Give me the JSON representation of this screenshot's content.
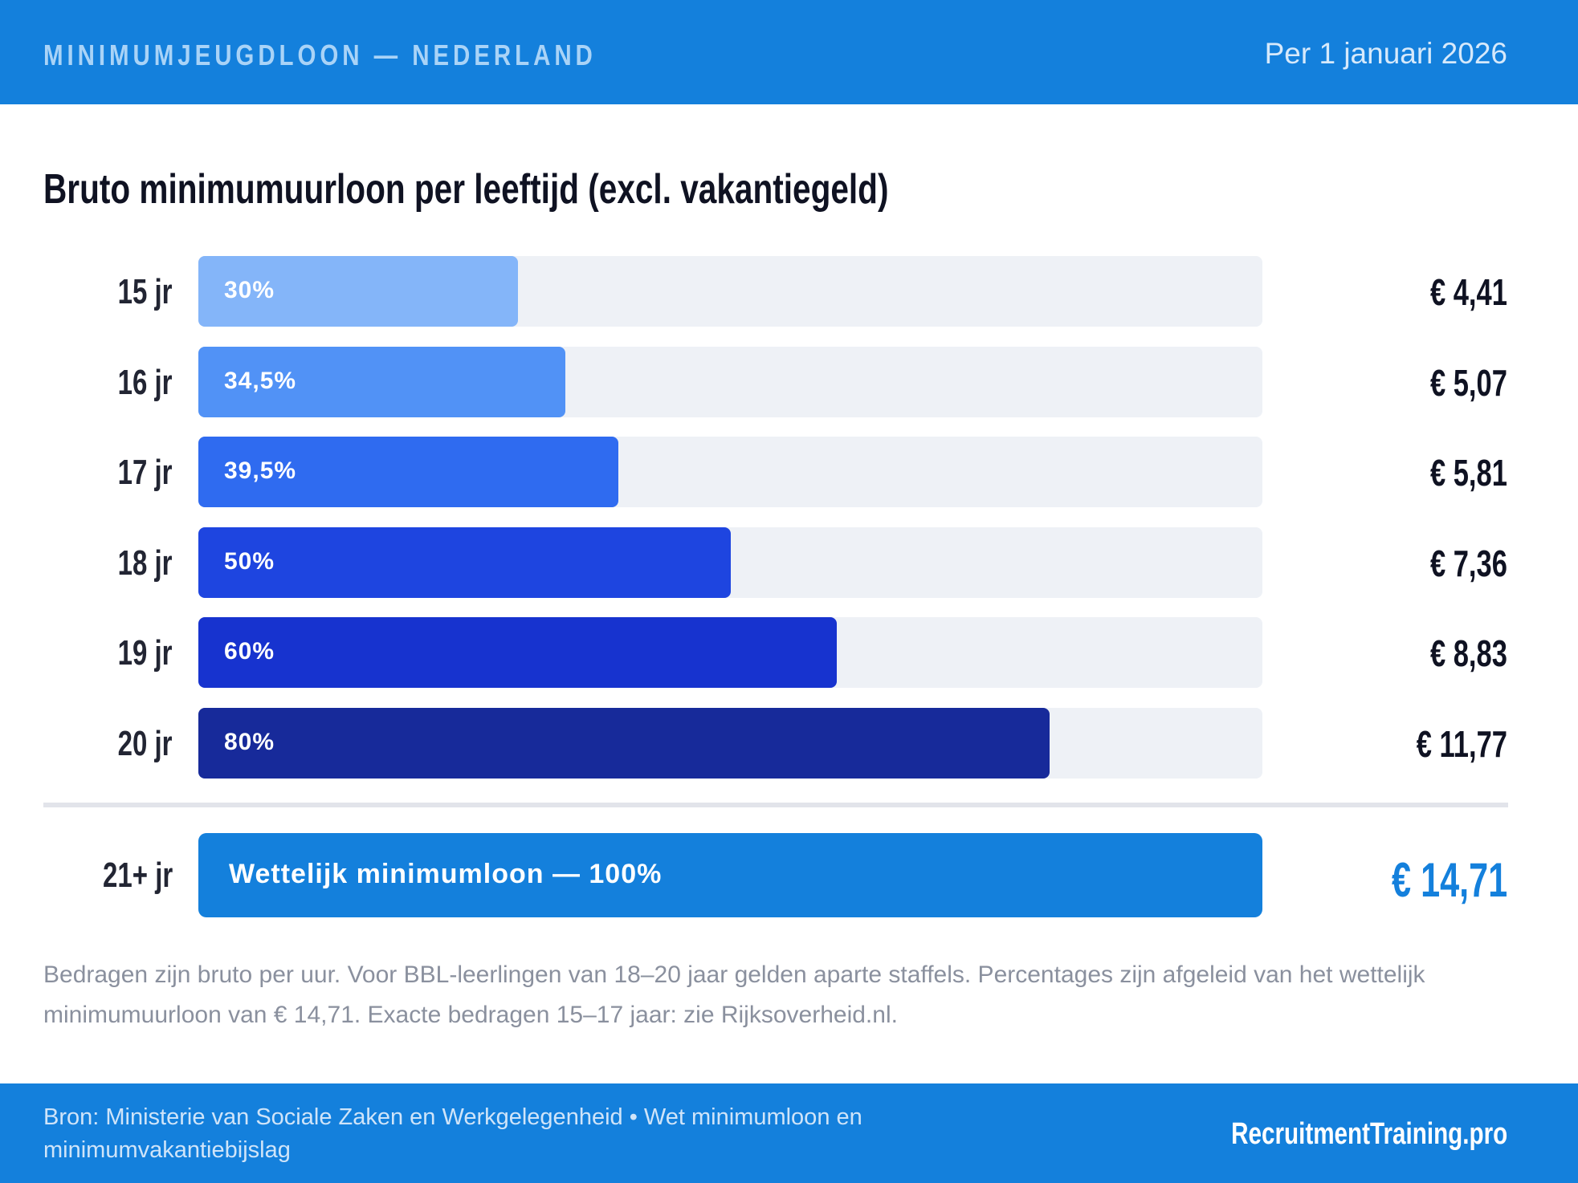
{
  "header": {
    "title": "MINIMUMJEUGDLOON — NEDERLAND",
    "date": "Per 1 januari 2026"
  },
  "chart_data": {
    "type": "bar",
    "title": "Bruto minimumuurloon per leeftijd (excl. vakantiegeld)",
    "orientation": "horizontal",
    "xlim": [
      0,
      100
    ],
    "categories": [
      "15 jr",
      "16 jr",
      "17 jr",
      "18 jr",
      "19 jr",
      "20 jr"
    ],
    "values": [
      30,
      34.5,
      39.5,
      50,
      60,
      80
    ],
    "labels": [
      "30%",
      "34,5%",
      "39,5%",
      "50%",
      "60%",
      "80%"
    ],
    "amounts": [
      "€ 4,41",
      "€ 5,07",
      "€ 5,81",
      "€ 7,36",
      "€ 8,83",
      "€ 11,77"
    ],
    "colors": [
      "#84b5f9",
      "#5192f6",
      "#2f6bf0",
      "#1e45e0",
      "#1733cf",
      "#172a9a"
    ],
    "track_color": "#eef1f6",
    "reference": {
      "category": "21+ jr",
      "label": "Wettelijk minimumloon — 100%",
      "value": 100,
      "amount": "€ 14,71",
      "color": "#1480dc"
    }
  },
  "note": "Bedragen zijn bruto per uur. Voor BBL-leerlingen van 18–20 jaar gelden aparte staffels. Percentages zijn afgeleid van het wettelijk minimumuurloon van € 14,71. Exacte bedragen 15–17 jaar: zie Rijksoverheid.nl.",
  "footer": {
    "source": "Bron: Ministerie van Sociale Zaken en Werkgelegenheid • Wet minimumloon en minimumvakantiebijslag",
    "brand": "RecruitmentTraining.pro"
  }
}
